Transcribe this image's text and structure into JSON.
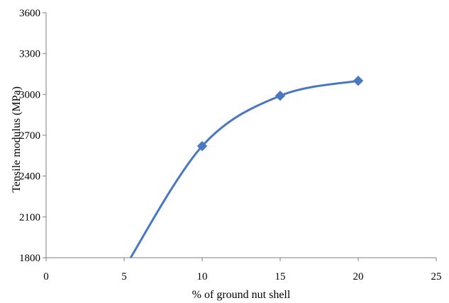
{
  "chart_data": {
    "type": "line",
    "title": "",
    "xlabel": "% of ground nut shell",
    "ylabel": "Tensile modulus (MPa)",
    "xlim": [
      0,
      25
    ],
    "ylim": [
      1800,
      3600
    ],
    "xticks": [
      0,
      5,
      10,
      15,
      20,
      25
    ],
    "yticks": [
      1800,
      2100,
      2400,
      2700,
      3000,
      3300,
      3600
    ],
    "x_tick_labels": [
      "0",
      "5",
      "10",
      "15",
      "20",
      "25"
    ],
    "y_tick_labels": [
      "1800",
      "2100",
      "2400",
      "2700",
      "3000",
      "3300",
      "3600"
    ],
    "grid": false,
    "legend": "none",
    "smooth": true,
    "series": [
      {
        "color": "#4a78c0",
        "marker": "diamond",
        "points": [
          {
            "x": 5,
            "y": 1720,
            "marker": false
          },
          {
            "x": 10,
            "y": 2620,
            "marker": true
          },
          {
            "x": 15,
            "y": 2990,
            "marker": true
          },
          {
            "x": 20,
            "y": 3100,
            "marker": true
          }
        ]
      }
    ]
  }
}
